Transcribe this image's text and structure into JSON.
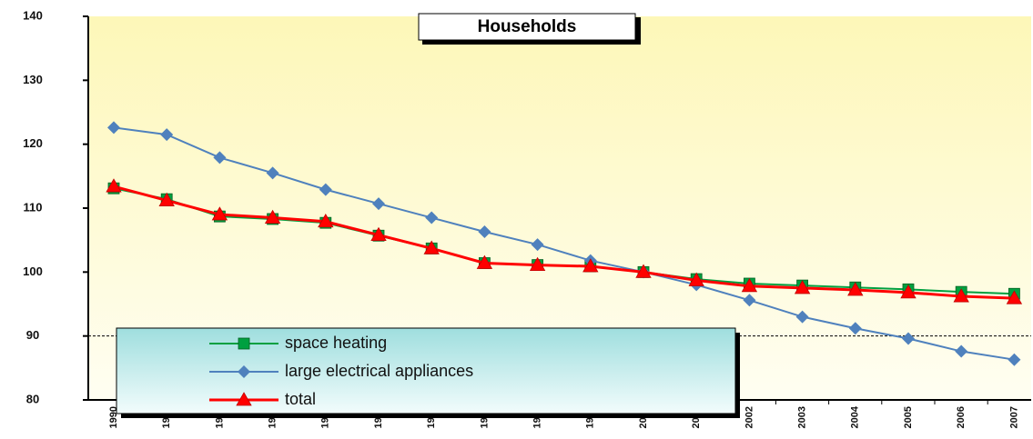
{
  "chart_data": {
    "type": "line",
    "title": "Households",
    "categories": [
      "1990",
      "1991",
      "1992",
      "1993",
      "1994",
      "1995",
      "1996",
      "1997",
      "1998",
      "1999",
      "2000",
      "2001",
      "2002",
      "2003",
      "2004",
      "2005",
      "2006",
      "2007"
    ],
    "series": [
      {
        "name": "space heating",
        "color": "#00a040",
        "marker": "square",
        "values": [
          113.1,
          111.4,
          108.7,
          108.3,
          107.7,
          105.7,
          103.7,
          101.4,
          101.1,
          100.9,
          100,
          98.9,
          98.2,
          97.9,
          97.6,
          97.3,
          96.9,
          96.6
        ]
      },
      {
        "name": "large electrical appliances",
        "color": "#4f81bd",
        "marker": "diamond",
        "values": [
          122.6,
          121.5,
          117.9,
          115.5,
          112.9,
          110.7,
          108.5,
          106.3,
          104.3,
          101.8,
          100,
          98.0,
          95.6,
          93.0,
          91.2,
          89.6,
          87.6,
          86.3
        ]
      },
      {
        "name": "total",
        "color": "#ff0000",
        "marker": "triangle",
        "values": [
          113.4,
          111.2,
          109.0,
          108.5,
          107.9,
          105.8,
          103.7,
          101.4,
          101.1,
          100.9,
          100,
          98.7,
          97.8,
          97.5,
          97.2,
          96.8,
          96.2,
          95.9
        ]
      }
    ],
    "ylim": [
      80,
      140
    ],
    "yticks": [
      80,
      90,
      100,
      110,
      120,
      130,
      140
    ],
    "reference_line": 90
  }
}
